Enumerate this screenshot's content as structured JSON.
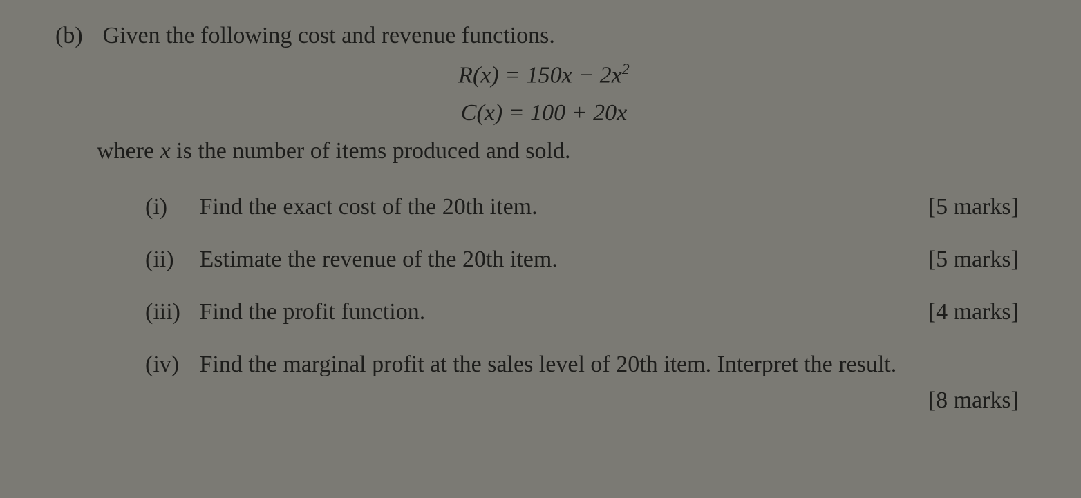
{
  "colors": {
    "background": "#7b7a74",
    "text": "#1d1d1b"
  },
  "typography": {
    "font_family": "Georgia, 'Times New Roman', serif",
    "body_fontsize_pt": 26,
    "math_italic": true
  },
  "question": {
    "part_label": "(b)",
    "intro": "Given the following cost and revenue functions.",
    "equations": {
      "revenue": "R(x) = 150x − 2x²",
      "revenue_parts": {
        "lhs": "R(x)",
        "rhs": "150x − 2x",
        "exp": "2"
      },
      "cost": "C(x) = 100 + 20x",
      "cost_parts": {
        "lhs": "C(x)",
        "rhs": "100 + 20x"
      }
    },
    "where": "where x is the number of items produced and sold.",
    "where_prefix": "where ",
    "where_var": "x",
    "where_suffix": " is the number of items produced and sold.",
    "subparts": [
      {
        "label": "(i)",
        "text": "Find the exact cost of the 20th item.",
        "marks": "[5 marks]"
      },
      {
        "label": "(ii)",
        "text": "Estimate the revenue of the 20th item.",
        "marks": "[5 marks]"
      },
      {
        "label": "(iii)",
        "text": "Find the profit function.",
        "marks": "[4 marks]"
      },
      {
        "label": "(iv)",
        "text": "Find the marginal profit at the sales level of 20th item. Interpret the result.",
        "marks": "[8 marks]"
      }
    ]
  }
}
